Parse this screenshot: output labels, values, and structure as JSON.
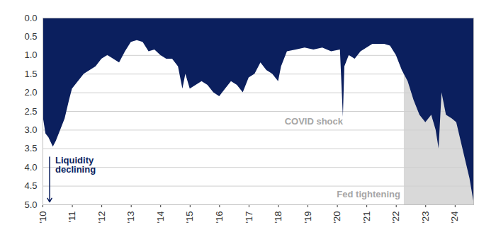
{
  "chart_data": {
    "type": "area",
    "color": "#0b1f5e",
    "x": [
      2010.0,
      2010.1,
      2010.2,
      2010.35,
      2010.45,
      2010.6,
      2010.75,
      2010.9,
      2011.0,
      2011.2,
      2011.4,
      2011.6,
      2011.8,
      2012.0,
      2012.2,
      2012.4,
      2012.6,
      2012.8,
      2013.0,
      2013.2,
      2013.4,
      2013.6,
      2013.8,
      2014.0,
      2014.2,
      2014.4,
      2014.6,
      2014.75,
      2014.85,
      2015.0,
      2015.2,
      2015.4,
      2015.6,
      2015.8,
      2016.0,
      2016.2,
      2016.4,
      2016.6,
      2016.8,
      2017.0,
      2017.2,
      2017.4,
      2017.6,
      2017.8,
      2018.0,
      2018.1,
      2018.3,
      2018.6,
      2018.9,
      2019.2,
      2019.5,
      2019.8,
      2020.1,
      2020.2,
      2020.25,
      2020.4,
      2020.6,
      2020.8,
      2021.0,
      2021.2,
      2021.4,
      2021.6,
      2021.8,
      2022.0,
      2022.2,
      2022.4,
      2022.6,
      2022.8,
      2023.0,
      2023.2,
      2023.35,
      2023.45,
      2023.55,
      2023.7,
      2023.9,
      2024.05,
      2024.2,
      2024.35,
      2024.5,
      2024.63
    ],
    "values": [
      2.6,
      3.1,
      3.2,
      3.45,
      3.3,
      3.0,
      2.7,
      2.2,
      1.9,
      1.7,
      1.5,
      1.4,
      1.3,
      1.1,
      1.0,
      1.1,
      1.2,
      0.9,
      0.65,
      0.6,
      0.65,
      0.9,
      0.85,
      1.0,
      1.1,
      1.1,
      1.3,
      1.9,
      1.5,
      1.9,
      1.8,
      1.7,
      1.8,
      2.0,
      2.1,
      1.9,
      1.7,
      1.8,
      2.0,
      1.6,
      1.5,
      1.2,
      1.4,
      1.5,
      1.7,
      1.3,
      0.9,
      0.85,
      0.8,
      0.85,
      0.8,
      0.9,
      0.85,
      2.65,
      1.3,
      1.0,
      1.1,
      0.9,
      0.8,
      0.7,
      0.7,
      0.7,
      0.75,
      1.0,
      1.4,
      1.7,
      2.2,
      2.6,
      2.8,
      2.6,
      3.0,
      3.5,
      2.0,
      2.6,
      2.7,
      2.8,
      3.3,
      3.8,
      4.3,
      4.9
    ],
    "xlim": [
      2010,
      2024.63
    ],
    "xticks": [
      {
        "value": 2010,
        "label": "'10"
      },
      {
        "value": 2011,
        "label": "'11"
      },
      {
        "value": 2012,
        "label": "'12"
      },
      {
        "value": 2013,
        "label": "'13"
      },
      {
        "value": 2014,
        "label": "'14"
      },
      {
        "value": 2015,
        "label": "'15"
      },
      {
        "value": 2016,
        "label": "'16"
      },
      {
        "value": 2017,
        "label": "'17"
      },
      {
        "value": 2018,
        "label": "'18"
      },
      {
        "value": 2019,
        "label": "'19"
      },
      {
        "value": 2020,
        "label": "'20"
      },
      {
        "value": 2021,
        "label": "'21"
      },
      {
        "value": 2022,
        "label": "'22"
      },
      {
        "value": 2023,
        "label": "'23"
      },
      {
        "value": 2024,
        "label": "'24"
      }
    ],
    "ylim": [
      0,
      5
    ],
    "yticks": [
      {
        "value": 0,
        "label": "0.0"
      },
      {
        "value": 0.5,
        "label": "0.5"
      },
      {
        "value": 1,
        "label": "1.0"
      },
      {
        "value": 1.5,
        "label": "1.5"
      },
      {
        "value": 2,
        "label": "2.0"
      },
      {
        "value": 2.5,
        "label": "2.5"
      },
      {
        "value": 3,
        "label": "3.0"
      },
      {
        "value": 3.5,
        "label": "3.5"
      },
      {
        "value": 4,
        "label": "4.0"
      },
      {
        "value": 4.5,
        "label": "4.5"
      },
      {
        "value": 5,
        "label": "5.0"
      }
    ],
    "grid": true,
    "shaded_range": {
      "x": [
        2022.27,
        2024.63
      ],
      "color": "#d9d9d9"
    },
    "annotations": [
      {
        "text": "Liquidity declining",
        "x": 2010.35,
        "y": 3.72,
        "color": "#0b1f5e",
        "arrow": true
      },
      {
        "text": "COVID shock",
        "x": 2019.2,
        "y": 2.78,
        "color": "#a6a6a6"
      },
      {
        "text": "Fed tightening",
        "x": 2021.06,
        "y": 4.73,
        "color": "#a6a6a6"
      }
    ]
  }
}
